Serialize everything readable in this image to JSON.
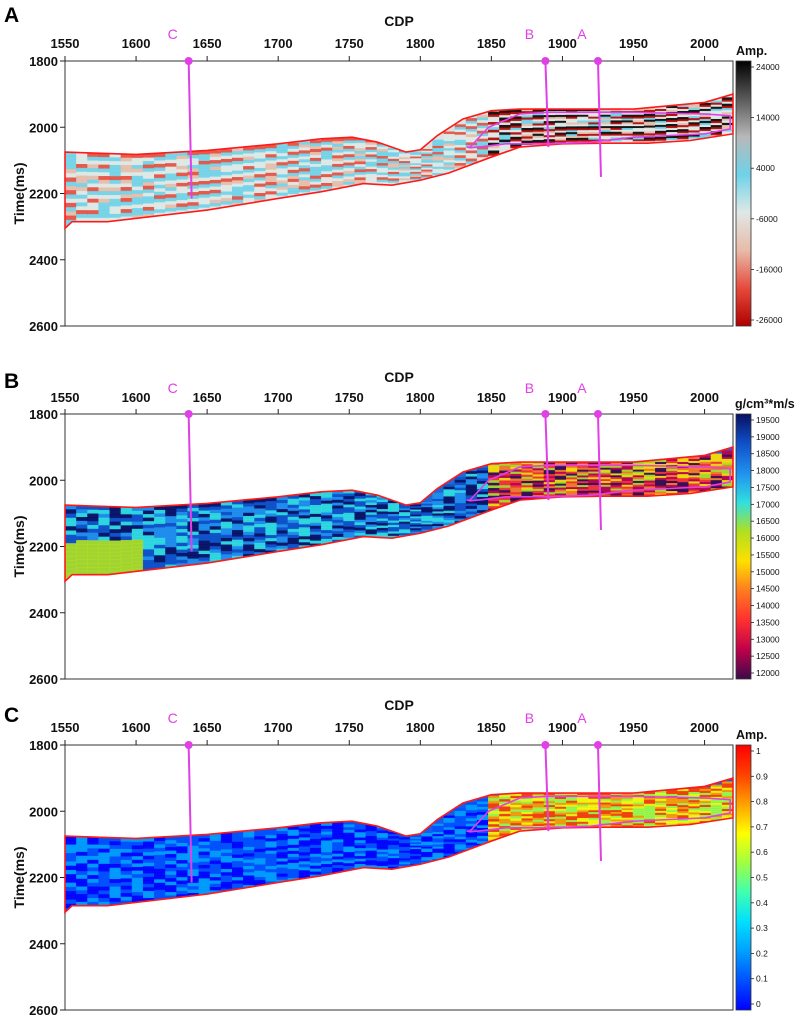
{
  "chart_data": [
    {
      "type": "heatmap",
      "panel_label": "A",
      "title": "CDP",
      "ylabel": "Time(ms)",
      "x_ticks": [
        "1550",
        "1600",
        "1650",
        "1700",
        "1750",
        "1800",
        "1850",
        "1900",
        "1950",
        "2000"
      ],
      "y_ticks": [
        "1800",
        "2000",
        "2200",
        "2400",
        "2600"
      ],
      "xlim": [
        1550,
        2020
      ],
      "ylim": [
        1800,
        2600
      ],
      "colorbar": {
        "title": "Amp.",
        "ticks": [
          "24000",
          "14000",
          "4000",
          "-6000",
          "-16000",
          "-26000"
        ],
        "range": [
          -26000,
          24000
        ],
        "colors": [
          "#b00000",
          "#e64a3c",
          "#e8bba8",
          "#dfe8e6",
          "#6fd2e8",
          "#b8b8b8",
          "#5a5a5a",
          "#000000"
        ]
      },
      "wells": [
        {
          "name": "C",
          "cdp": 1637,
          "t_start": 1800,
          "t_end": 2215
        },
        {
          "name": "B",
          "cdp": 1888,
          "t_start": 1800,
          "t_end": 2060
        },
        {
          "name": "A",
          "cdp": 1925,
          "t_start": 1800,
          "t_end": 2150
        }
      ]
    },
    {
      "type": "heatmap",
      "panel_label": "B",
      "title": "CDP",
      "ylabel": "Time(ms)",
      "x_ticks": [
        "1550",
        "1600",
        "1650",
        "1700",
        "1750",
        "1800",
        "1850",
        "1900",
        "1950",
        "2000"
      ],
      "y_ticks": [
        "1800",
        "2000",
        "2200",
        "2400",
        "2600"
      ],
      "xlim": [
        1550,
        2020
      ],
      "ylim": [
        1800,
        2600
      ],
      "colorbar": {
        "title": "g/cm³*m/s",
        "ticks": [
          "19500",
          "19000",
          "18500",
          "18000",
          "17500",
          "17000",
          "16500",
          "16000",
          "15500",
          "15000",
          "14500",
          "14000",
          "13500",
          "13000",
          "12500",
          "12000"
        ],
        "range": [
          12000,
          19500
        ],
        "colors": [
          "#3a0a4a",
          "#c0004a",
          "#ff3030",
          "#ff7a20",
          "#ffe000",
          "#b0e020",
          "#30e0e0",
          "#2090ee",
          "#1050c8",
          "#081060"
        ]
      },
      "wells": [
        {
          "name": "C",
          "cdp": 1637,
          "t_start": 1800,
          "t_end": 2215
        },
        {
          "name": "B",
          "cdp": 1888,
          "t_start": 1800,
          "t_end": 2060
        },
        {
          "name": "A",
          "cdp": 1925,
          "t_start": 1800,
          "t_end": 2150
        }
      ]
    },
    {
      "type": "heatmap",
      "panel_label": "C",
      "title": "CDP",
      "ylabel": "Time(ms)",
      "x_ticks": [
        "1550",
        "1600",
        "1650",
        "1700",
        "1750",
        "1800",
        "1850",
        "1900",
        "1950",
        "2000"
      ],
      "y_ticks": [
        "1800",
        "2000",
        "2200",
        "2400",
        "2600"
      ],
      "xlim": [
        1550,
        2020
      ],
      "ylim": [
        1800,
        2600
      ],
      "colorbar": {
        "title": "Amp.",
        "ticks": [
          "1",
          "0.9",
          "0.8",
          "0.7",
          "0.6",
          "0.5",
          "0.4",
          "0.3",
          "0.2",
          "0.1",
          "0"
        ],
        "range": [
          0,
          1
        ],
        "colors": [
          "#0000ff",
          "#0050ff",
          "#00a0ff",
          "#00e0ff",
          "#40ffb0",
          "#a0ff40",
          "#ffff00",
          "#ffa000",
          "#ff4000",
          "#ff0000"
        ]
      },
      "wells": [
        {
          "name": "C",
          "cdp": 1637,
          "t_start": 1800,
          "t_end": 2215
        },
        {
          "name": "B",
          "cdp": 1888,
          "t_start": 1800,
          "t_end": 2060
        },
        {
          "name": "A",
          "cdp": 1925,
          "t_start": 1800,
          "t_end": 2150
        }
      ]
    }
  ],
  "horizons": {
    "top_cdp": [
      1550,
      1570,
      1600,
      1650,
      1700,
      1730,
      1752,
      1770,
      1790,
      1800,
      1812,
      1830,
      1850,
      1870,
      1900,
      1950,
      2000,
      2020
    ],
    "top_time": [
      2075,
      2078,
      2082,
      2070,
      2050,
      2035,
      2030,
      2045,
      2075,
      2068,
      2025,
      1975,
      1950,
      1945,
      1945,
      1945,
      1925,
      1900
    ],
    "base_cdp": [
      1550,
      1555,
      1580,
      1650,
      1700,
      1730,
      1760,
      1780,
      1800,
      1820,
      1850,
      1870,
      1900,
      1930,
      1960,
      1990,
      2020
    ],
    "base_time": [
      2305,
      2285,
      2285,
      2250,
      2215,
      2195,
      2170,
      2175,
      2160,
      2138,
      2090,
      2060,
      2050,
      2048,
      2048,
      2040,
      2020
    ],
    "target_zone": {
      "cdp": [
        1835,
        1848,
        1870,
        1890,
        1950,
        2000,
        2018,
        2018,
        2000,
        1950,
        1920,
        1890,
        1860,
        1845,
        1835,
        1833
      ],
      "time": [
        2060,
        2000,
        1960,
        1955,
        1955,
        1960,
        1965,
        2005,
        2020,
        2030,
        2045,
        2050,
        2050,
        2058,
        2062,
        2060
      ]
    }
  }
}
